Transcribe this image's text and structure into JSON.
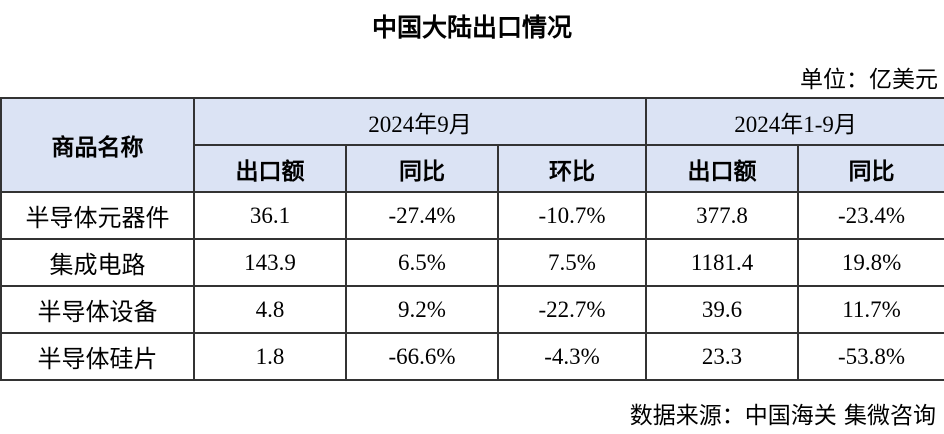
{
  "title": "中国大陆出口情况",
  "unit": "单位：亿美元",
  "table": {
    "corner": "商品名称",
    "groups": [
      "2024年9月",
      "2024年1-9月"
    ],
    "columns": [
      "出口额",
      "同比",
      "环比",
      "出口额",
      "同比"
    ],
    "rows": [
      [
        "半导体元器件",
        "36.1",
        "-27.4%",
        "-10.7%",
        "377.8",
        "-23.4%"
      ],
      [
        "集成电路",
        "143.9",
        "6.5%",
        "7.5%",
        "1181.4",
        "19.8%"
      ],
      [
        "半导体设备",
        "4.8",
        "9.2%",
        "-22.7%",
        "39.6",
        "11.7%"
      ],
      [
        "半导体硅片",
        "1.8",
        "-66.6%",
        "-4.3%",
        "23.3",
        "-53.8%"
      ]
    ]
  },
  "source": "数据来源：中国海关 集微咨询"
}
